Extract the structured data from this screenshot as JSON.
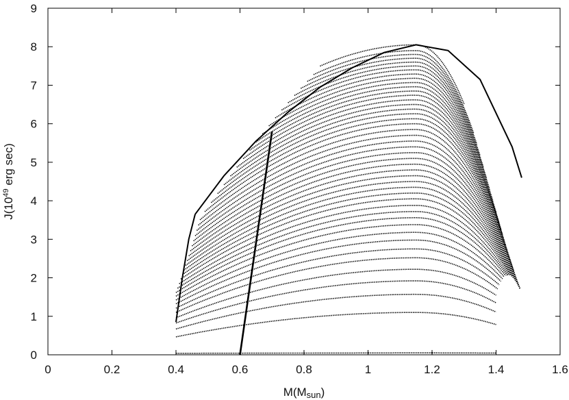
{
  "chart_data": {
    "type": "line",
    "xlabel": "M(Msun)",
    "ylabel": "J(10^49 erg sec)",
    "xlim": [
      0,
      1.6
    ],
    "ylim": [
      0,
      9
    ],
    "xticks": [
      "0",
      "0.2",
      "0.4",
      "0.6",
      "0.8",
      "1",
      "1.2",
      "1.4",
      "1.6"
    ],
    "yticks": [
      "0",
      "1",
      "2",
      "3",
      "4",
      "5",
      "6",
      "7",
      "8",
      "9"
    ],
    "grid": false,
    "legend": "none",
    "line_color": "#000000",
    "series_family": {
      "description_count": 45,
      "curve_peak_mass": 1.15,
      "peak_values": [
        0.05,
        1.1,
        1.57,
        1.92,
        2.22,
        2.52,
        2.75,
        2.98,
        3.18,
        3.38,
        3.56,
        3.72,
        3.88,
        4.05,
        4.2,
        4.35,
        4.5,
        4.65,
        4.8,
        4.95,
        5.1,
        5.25,
        5.4,
        5.55,
        5.7,
        5.85,
        6.0,
        6.13,
        6.26,
        6.38,
        6.5,
        6.62,
        6.74,
        6.85,
        6.96,
        7.07,
        7.18,
        7.29,
        7.4,
        7.5,
        7.6,
        7.7,
        7.8,
        7.9,
        8.05
      ],
      "left_end_mass": [
        0.4,
        0.4,
        0.4,
        0.4,
        0.4,
        0.4,
        0.4,
        0.4,
        0.4,
        0.4,
        0.4,
        0.405,
        0.41,
        0.415,
        0.42,
        0.425,
        0.43,
        0.435,
        0.44,
        0.445,
        0.45,
        0.455,
        0.46,
        0.465,
        0.47,
        0.475,
        0.49,
        0.51,
        0.53,
        0.55,
        0.57,
        0.59,
        0.61,
        0.63,
        0.65,
        0.67,
        0.69,
        0.71,
        0.73,
        0.75,
        0.77,
        0.79,
        0.81,
        0.83,
        0.85
      ],
      "right_end_mass": [
        1.4,
        1.4,
        1.4,
        1.4,
        1.4,
        1.405,
        1.41,
        1.415,
        1.42,
        1.425,
        1.43,
        1.435,
        1.44,
        1.445,
        1.45,
        1.455,
        1.46,
        1.465,
        1.47,
        1.47,
        1.475,
        1.475,
        1.475,
        1.47,
        1.465,
        1.46,
        1.455,
        1.45,
        1.445,
        1.44,
        1.435,
        1.43,
        1.425,
        1.42,
        1.415,
        1.41,
        1.4,
        1.39,
        1.38,
        1.37,
        1.36,
        1.35,
        1.34,
        1.33,
        1.3
      ]
    },
    "boundary_line": {
      "x": [
        0.6,
        0.7
      ],
      "y": [
        0,
        5.8
      ]
    },
    "upper_envelope": {
      "x": [
        0.46,
        0.55,
        0.65,
        0.75,
        0.85,
        0.95,
        1.05,
        1.15,
        1.25,
        1.35,
        1.45,
        1.48
      ],
      "y": [
        3.65,
        4.65,
        5.55,
        6.3,
        6.95,
        7.45,
        7.85,
        8.05,
        7.9,
        7.15,
        5.4,
        4.6
      ]
    },
    "lower_left_envelope": {
      "x": [
        0.4,
        0.42,
        0.44,
        0.46
      ],
      "y": [
        0.85,
        2.0,
        3.0,
        3.65
      ]
    }
  }
}
